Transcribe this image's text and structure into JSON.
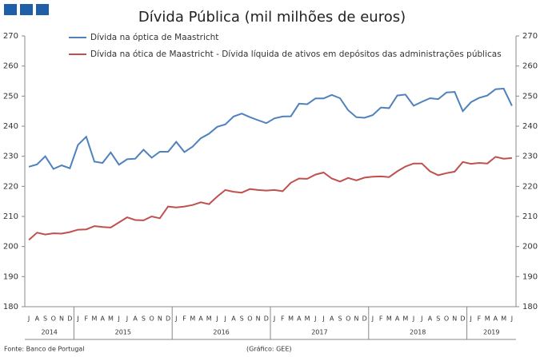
{
  "chart_data": {
    "type": "line",
    "title": "Dívida Pública (mil milhões de euros)",
    "source": "Fonte: Banco de Portugal",
    "credit": "(Gráfico: GEE)",
    "categories": [
      "J",
      "A",
      "S",
      "O",
      "N",
      "D",
      "J",
      "F",
      "M",
      "A",
      "M",
      "J",
      "J",
      "A",
      "S",
      "O",
      "N",
      "D",
      "J",
      "F",
      "M",
      "A",
      "M",
      "J",
      "J",
      "A",
      "S",
      "O",
      "N",
      "D",
      "J",
      "F",
      "M",
      "A",
      "M",
      "J",
      "J",
      "A",
      "S",
      "O",
      "N",
      "D",
      "J",
      "F",
      "M",
      "A",
      "M",
      "J",
      "J",
      "A",
      "S",
      "O",
      "N",
      "D",
      "J",
      "F",
      "M",
      "A",
      "M",
      "J"
    ],
    "groups": [
      {
        "label": "2014",
        "count": 6
      },
      {
        "label": "2015",
        "count": 12
      },
      {
        "label": "2016",
        "count": 12
      },
      {
        "label": "2017",
        "count": 12
      },
      {
        "label": "2018",
        "count": 12
      },
      {
        "label": "2019",
        "count": 6
      }
    ],
    "ylim": [
      180,
      270
    ],
    "yticks": [
      180,
      190,
      200,
      210,
      220,
      230,
      240,
      250,
      260,
      270
    ],
    "y2lim": [
      180,
      270
    ],
    "y2ticks": [
      180,
      190,
      200,
      210,
      220,
      230,
      240,
      250,
      260,
      270
    ],
    "grid": false,
    "series": [
      {
        "name": "Dívida na óptica de Maastricht",
        "color": "#4f81bd",
        "values": [
          226.5,
          227.3,
          230,
          225.8,
          227,
          226,
          233.8,
          236.5,
          228.2,
          227.8,
          231.3,
          227.2,
          229,
          229.2,
          232.2,
          229.5,
          231.5,
          231.5,
          234.8,
          231.4,
          233.2,
          236,
          237.5,
          239.8,
          240.6,
          243.2,
          244.2,
          243,
          242,
          241,
          242.6,
          243.2,
          243.3,
          247.5,
          247.3,
          249.2,
          249.2,
          250.4,
          249.3,
          245.3,
          243,
          242.8,
          243.7,
          246.2,
          246,
          250.2,
          250.5,
          246.8,
          248.1,
          249.3,
          249,
          251.2,
          251.4,
          245,
          248,
          249.4,
          250.2,
          252.3,
          252.5,
          246.8
        ]
      },
      {
        "name": "Dívida na ótica de Maastricht - Dívida líquida de ativos em depósitos das administrações públicas",
        "color": "#c0504d",
        "values": [
          202.2,
          204.6,
          204,
          204.4,
          204.3,
          204.8,
          205.6,
          205.7,
          206.8,
          206.5,
          206.3,
          208,
          209.7,
          208.8,
          208.7,
          210,
          209.4,
          213.3,
          213,
          213.3,
          213.8,
          214.7,
          214.1,
          216.6,
          218.8,
          218.2,
          217.9,
          219.1,
          218.8,
          218.6,
          218.8,
          218.4,
          221.2,
          222.6,
          222.5,
          223.9,
          224.6,
          222.6,
          221.6,
          222.8,
          222,
          222.9,
          223.2,
          223.3,
          223.1,
          225,
          226.6,
          227.6,
          227.6,
          225,
          223.7,
          224.4,
          224.9,
          228.1,
          227.5,
          227.8,
          227.6,
          229.8,
          229.2,
          229.4
        ]
      }
    ]
  }
}
